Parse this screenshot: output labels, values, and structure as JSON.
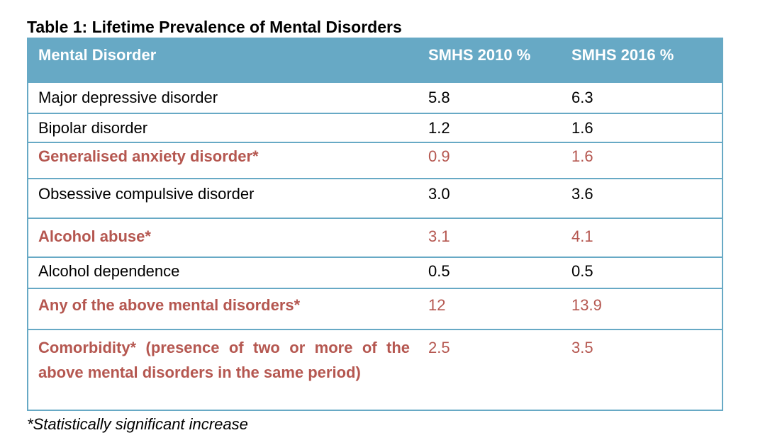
{
  "title": "Table 1: Lifetime Prevalence of Mental Disorders",
  "colors": {
    "header_bg": "#67a9c5",
    "header_text": "#ffffff",
    "significant_text": "#b55750",
    "normal_text": "#000000"
  },
  "table": {
    "headers": [
      "Mental Disorder",
      "SMHS 2010 %",
      "SMHS 2016 %"
    ],
    "rows": [
      {
        "disorder": "Major depressive disorder",
        "smhs_2010": "5.8",
        "smhs_2016": "6.3",
        "significant": false
      },
      {
        "disorder": "Bipolar disorder",
        "smhs_2010": "1.2",
        "smhs_2016": "1.6",
        "significant": false
      },
      {
        "disorder": "Generalised anxiety disorder*",
        "smhs_2010": "0.9",
        "smhs_2016": "1.6",
        "significant": true
      },
      {
        "disorder": "Obsessive compulsive disorder",
        "smhs_2010": "3.0",
        "smhs_2016": "3.6",
        "significant": false
      },
      {
        "disorder": "Alcohol abuse*",
        "smhs_2010": "3.1",
        "smhs_2016": "4.1",
        "significant": true
      },
      {
        "disorder": "Alcohol dependence",
        "smhs_2010": "0.5",
        "smhs_2016": "0.5",
        "significant": false
      },
      {
        "disorder": "Any of the above mental disorders*",
        "smhs_2010": "12",
        "smhs_2016": "13.9",
        "significant": true
      },
      {
        "disorder": "Comorbidity* (presence of two or more of the above mental disorders in the same period)",
        "smhs_2010": "2.5",
        "smhs_2016": "3.5",
        "significant": true
      }
    ]
  },
  "footnote": "*Statistically significant increase"
}
